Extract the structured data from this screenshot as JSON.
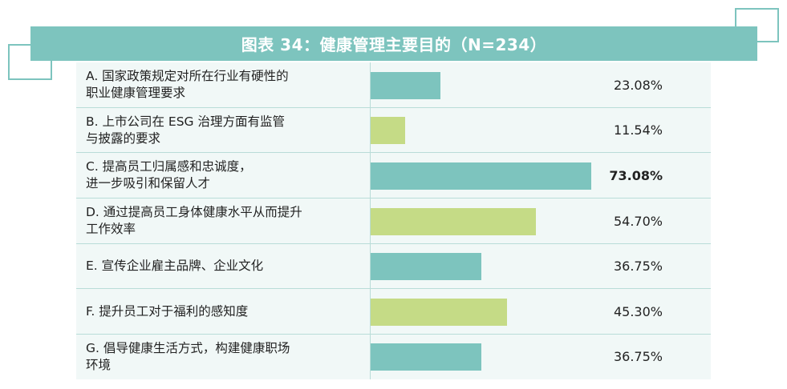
{
  "title": "图表 34：健康管理主要目的（N=234）",
  "colors": {
    "teal": "#7dc4be",
    "green": "#c5db86"
  },
  "chart_data": {
    "type": "bar",
    "orientation": "horizontal",
    "title": "图表 34：健康管理主要目的（N=234）",
    "categories": [
      "A. 国家政策规定对所在行业有硬性的\n职业健康管理要求",
      "B. 上市公司在 ESG 治理方面有监管\n与披露的要求",
      "C. 提高员工归属感和忠诚度，\n进一步吸引和保留人才",
      "D. 通过提高员工身体健康水平从而提升\n工作效率",
      "E. 宣传企业雇主品牌、企业文化",
      "F. 提升员工对于福利的感知度",
      "G. 倡导健康生活方式，构建健康职场\n环境"
    ],
    "values": [
      23.08,
      11.54,
      73.08,
      54.7,
      36.75,
      45.3,
      36.75
    ],
    "value_labels": [
      "23.08%",
      "11.54%",
      "73.08%",
      "54.70%",
      "36.75%",
      "45.30%",
      "36.75%"
    ],
    "bar_colors": [
      "#7dc4be",
      "#c5db86",
      "#7dc4be",
      "#c5db86",
      "#7dc4be",
      "#c5db86",
      "#7dc4be"
    ],
    "highlight_index": 2,
    "xlim": [
      0,
      100
    ],
    "grid": false
  }
}
